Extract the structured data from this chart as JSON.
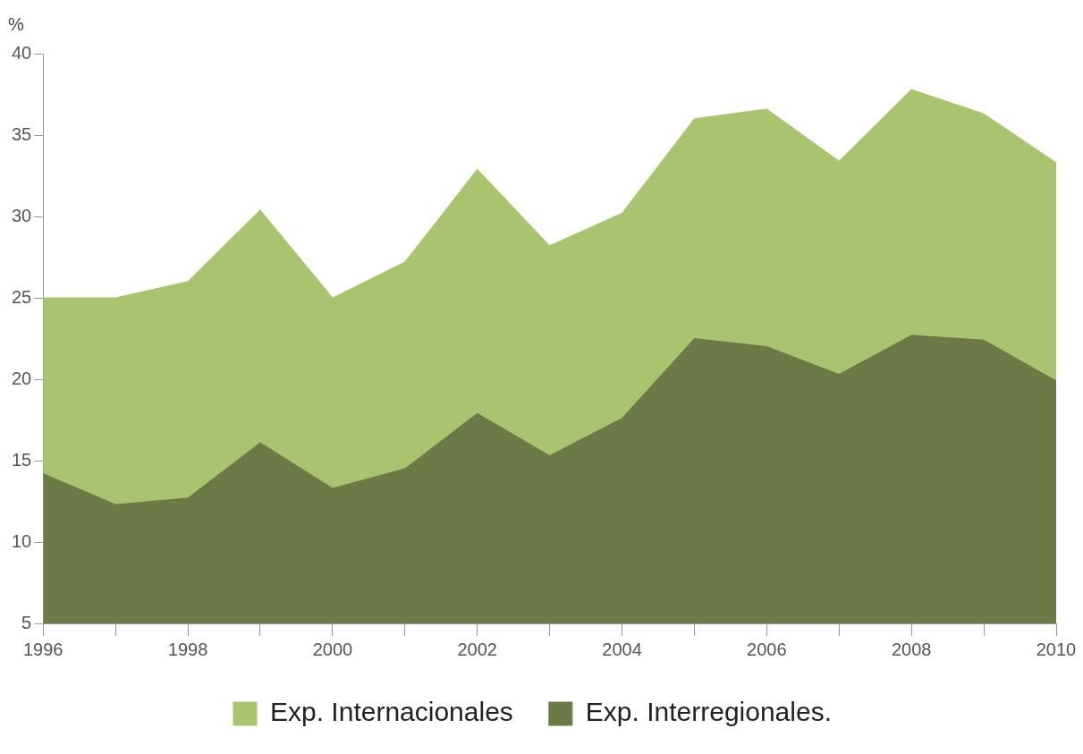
{
  "chart_data": {
    "type": "area",
    "ylabel": "%",
    "x": [
      1996,
      1997,
      1998,
      1999,
      2000,
      2001,
      2002,
      2003,
      2004,
      2005,
      2006,
      2007,
      2008,
      2009,
      2010
    ],
    "series": [
      {
        "name": "Exp. Internacionales",
        "color": "#a9c46f",
        "values": [
          25.0,
          25.0,
          26.0,
          30.4,
          25.0,
          27.2,
          32.9,
          28.2,
          30.2,
          36.0,
          36.6,
          33.4,
          37.8,
          36.3,
          33.3
        ]
      },
      {
        "name": "Exp. Interregionales.",
        "color": "#6b7a46",
        "values": [
          14.2,
          12.3,
          12.7,
          16.1,
          13.3,
          14.5,
          17.9,
          15.3,
          17.6,
          22.5,
          22.0,
          20.3,
          22.7,
          22.4,
          19.9
        ]
      }
    ],
    "xlim": [
      1996,
      2010
    ],
    "xticks": [
      1996,
      {
        "value": 1997,
        "label": null
      },
      1998,
      {
        "value": 1999,
        "label": null
      },
      2000,
      {
        "value": 2001,
        "label": null
      },
      2002,
      {
        "value": 2003,
        "label": null
      },
      2004,
      {
        "value": 2005,
        "label": null
      },
      2006,
      {
        "value": 2007,
        "label": null
      },
      2008,
      {
        "value": 2009,
        "label": null
      },
      2010
    ],
    "ylim": [
      5,
      40
    ],
    "yticks": [
      5,
      10,
      15,
      20,
      25,
      30,
      35,
      40
    ],
    "grid": false,
    "legend": "bottom"
  }
}
